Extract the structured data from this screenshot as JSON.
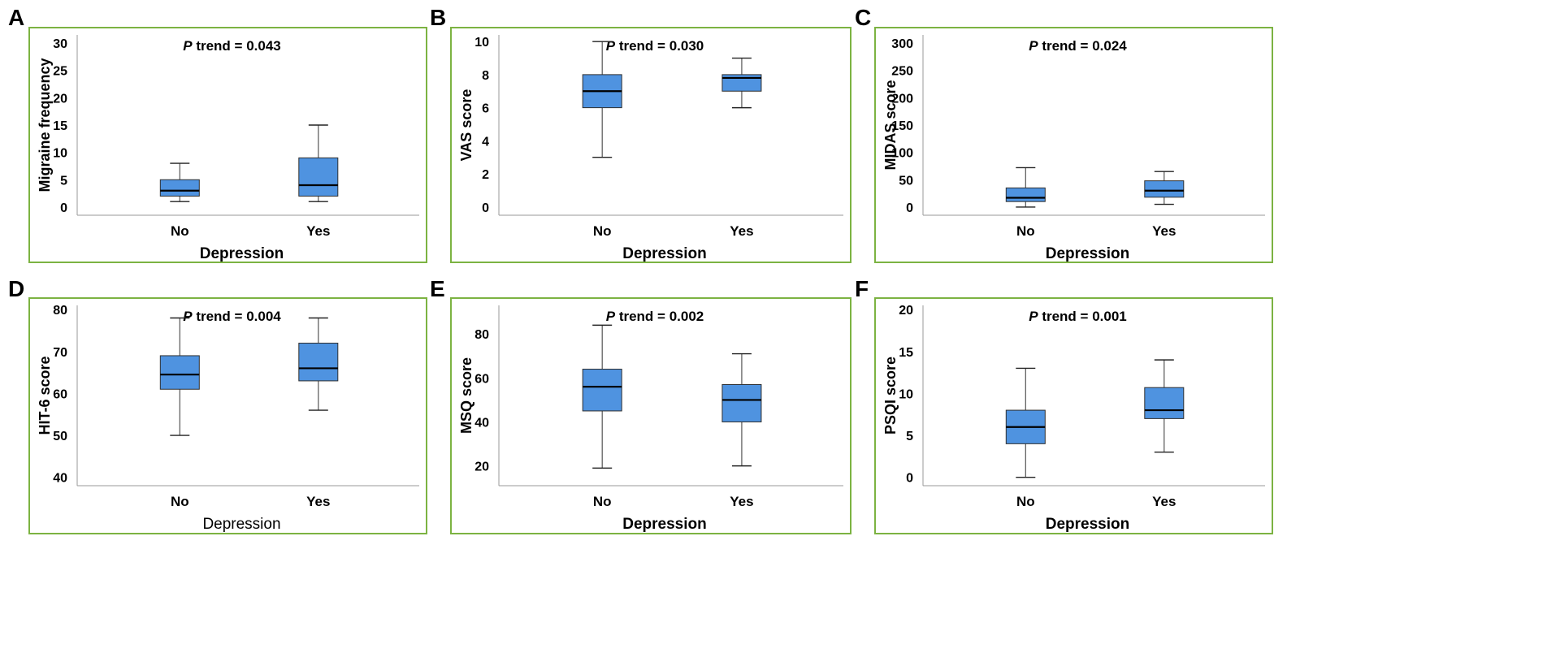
{
  "figure": {
    "frame_color": "#7cb342",
    "box_fill": "#4f93e0",
    "box_stroke": "#2f2f2f"
  },
  "chart_data": [
    {
      "panel": "A",
      "type": "box",
      "trend_label": "P",
      "trend_text": " trend = 0.043",
      "ylabel": "Migraine frequency",
      "xlabel": "Depression",
      "xlabel_bold": true,
      "ylim": [
        -1.5,
        31.5
      ],
      "yticks": [
        0,
        5,
        10,
        15,
        20,
        25,
        30
      ],
      "categories": [
        "No",
        "Yes"
      ],
      "boxes": [
        {
          "min": 1,
          "q1": 2,
          "median": 3,
          "q3": 5,
          "max": 8
        },
        {
          "min": 1,
          "q1": 2,
          "median": 4,
          "q3": 9,
          "max": 15
        }
      ]
    },
    {
      "panel": "B",
      "type": "box",
      "trend_label": "P",
      "trend_text": " trend = 0.030",
      "ylabel": "VAS score",
      "xlabel": "Depression",
      "xlabel_bold": true,
      "ylim": [
        -0.5,
        10.4
      ],
      "yticks": [
        0,
        2,
        4,
        6,
        8,
        10
      ],
      "categories": [
        "No",
        "Yes"
      ],
      "boxes": [
        {
          "min": 3,
          "q1": 6,
          "median": 7,
          "q3": 8,
          "max": 10
        },
        {
          "min": 6,
          "q1": 7,
          "median": 7.8,
          "q3": 8,
          "max": 9
        }
      ]
    },
    {
      "panel": "C",
      "type": "box",
      "trend_label": "P",
      "trend_text": " trend = 0.024",
      "ylabel": "MIDAS score",
      "xlabel": "Depression",
      "xlabel_bold": true,
      "ylim": [
        -15,
        315
      ],
      "yticks": [
        0,
        50,
        100,
        150,
        200,
        250,
        300
      ],
      "categories": [
        "No",
        "Yes"
      ],
      "boxes": [
        {
          "min": 0,
          "q1": 10,
          "median": 17,
          "q3": 35,
          "max": 72
        },
        {
          "min": 5,
          "q1": 18,
          "median": 30,
          "q3": 48,
          "max": 65
        }
      ]
    },
    {
      "panel": "D",
      "type": "box",
      "trend_label": "P",
      "trend_text": " trend = 0.004",
      "ylabel": "HIT-6 score",
      "xlabel": "Depression",
      "xlabel_bold": false,
      "ylim": [
        38,
        81
      ],
      "yticks": [
        40,
        50,
        60,
        70,
        80
      ],
      "categories": [
        "No",
        "Yes"
      ],
      "boxes": [
        {
          "min": 50,
          "q1": 61,
          "median": 64.5,
          "q3": 69,
          "max": 78
        },
        {
          "min": 56,
          "q1": 63,
          "median": 66,
          "q3": 72,
          "max": 78
        }
      ]
    },
    {
      "panel": "E",
      "type": "box",
      "trend_label": "P",
      "trend_text": " trend = 0.002",
      "ylabel": "MSQ score",
      "xlabel": "Depression",
      "xlabel_bold": true,
      "ylim": [
        11,
        93
      ],
      "yticks": [
        20,
        40,
        60,
        80
      ],
      "categories": [
        "No",
        "Yes"
      ],
      "boxes": [
        {
          "min": 19,
          "q1": 45,
          "median": 56,
          "q3": 64,
          "max": 84
        },
        {
          "min": 20,
          "q1": 40,
          "median": 50,
          "q3": 57,
          "max": 71
        }
      ]
    },
    {
      "panel": "F",
      "type": "box",
      "trend_label": "P",
      "trend_text": " trend = 0.001",
      "ylabel": "PSQI score",
      "xlabel": "Depression",
      "xlabel_bold": true,
      "ylim": [
        -1,
        20.5
      ],
      "yticks": [
        0,
        5,
        10,
        15,
        20
      ],
      "categories": [
        "No",
        "Yes"
      ],
      "boxes": [
        {
          "min": 0,
          "q1": 4,
          "median": 6,
          "q3": 8,
          "max": 13
        },
        {
          "min": 3,
          "q1": 7,
          "median": 8,
          "q3": 10.7,
          "max": 14
        }
      ]
    }
  ]
}
